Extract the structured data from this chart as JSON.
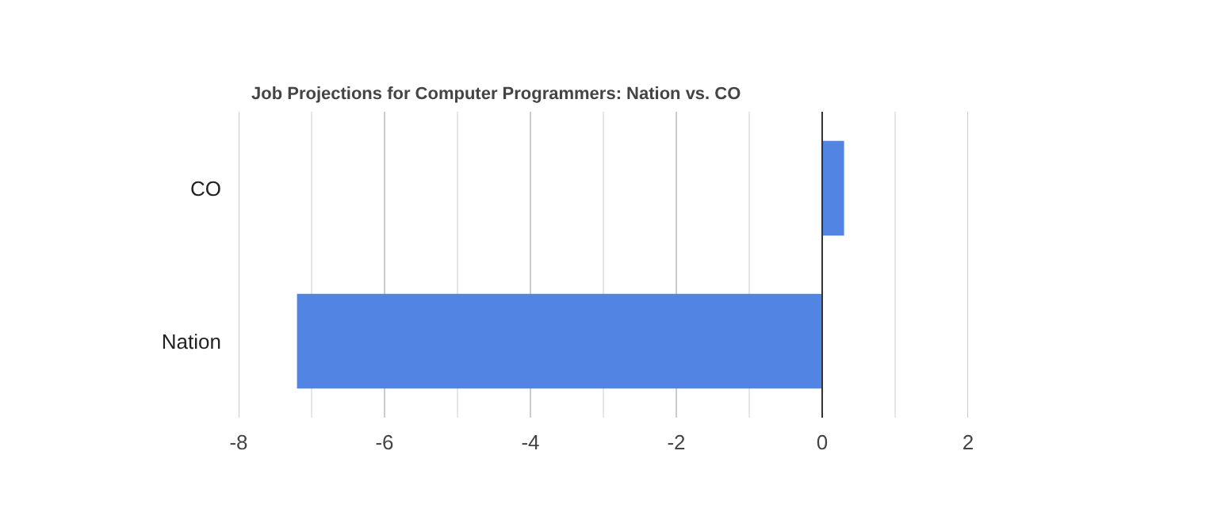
{
  "chart_data": {
    "type": "bar",
    "orientation": "horizontal",
    "title": "Job Projections for Computer Programmers: Nation vs. CO",
    "categories": [
      "CO",
      "Nation"
    ],
    "values": [
      0.3,
      -7.2
    ],
    "color": "#5285e3",
    "xlim": [
      -8,
      2
    ],
    "xticks": [
      -8,
      {
        "value": -7,
        "label": null
      },
      -6,
      {
        "value": -5,
        "label": null
      },
      -4,
      {
        "value": -3,
        "label": null
      },
      -2,
      {
        "value": -1,
        "label": null
      },
      0,
      {
        "value": 1,
        "label": null
      },
      2
    ],
    "grid": "x"
  }
}
